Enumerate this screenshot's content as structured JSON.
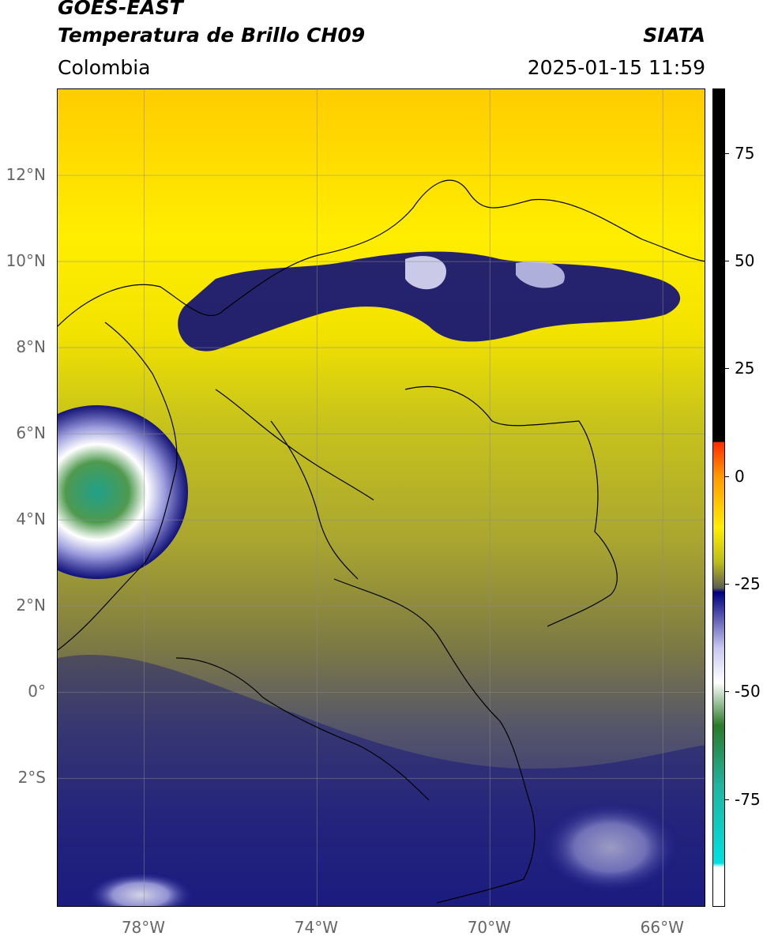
{
  "header": {
    "satellite": "GOES-EAST",
    "product": "Temperatura de Brillo CH09",
    "region": "Colombia",
    "agency": "SIATA",
    "datetime": "2025-01-15 11:59"
  },
  "map": {
    "lon_range": [
      -80,
      -65
    ],
    "lat_range": [
      -5,
      14
    ],
    "lat_labels": [
      "12°N",
      "10°N",
      "8°N",
      "6°N",
      "4°N",
      "2°N",
      "0°",
      "2°S"
    ],
    "lat_values": [
      12,
      10,
      8,
      6,
      4,
      2,
      0,
      -2
    ],
    "lon_labels": [
      "78°W",
      "74°W",
      "70°W",
      "66°W"
    ],
    "lon_values": [
      -78,
      -74,
      -70,
      -66
    ],
    "grid": true
  },
  "colorbar": {
    "labels": [
      "75",
      "50",
      "25",
      "0",
      "-25",
      "-50",
      "-75"
    ],
    "values": [
      75,
      50,
      25,
      0,
      -25,
      -50,
      -75
    ],
    "range": [
      -100,
      90
    ],
    "colors": {
      "black": "#000000",
      "red": "#ff2a00",
      "orange": "#ff9900",
      "yellow": "#ffee00",
      "olive": "#bcbc1c",
      "gray": "#5f5f52",
      "navy": "#000080",
      "lavender": "#c8c8f0",
      "white": "#ffffff",
      "green": "#2a7a2a",
      "teal": "#20b4a0",
      "cyan": "#00e0e0"
    }
  }
}
